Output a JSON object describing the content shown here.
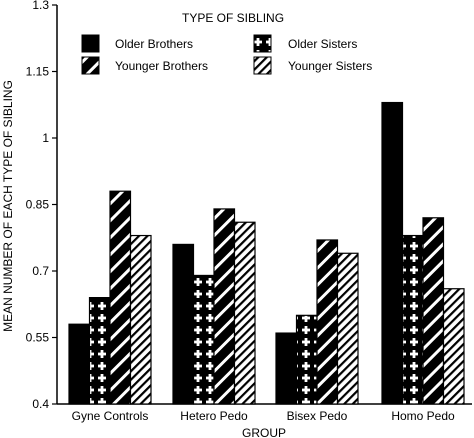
{
  "chart_data": {
    "type": "bar",
    "xlabel": "GROUP",
    "ylabel": "MEAN NUMBER OF EACH TYPE OF SIBLING",
    "ylim": [
      0.4,
      1.3
    ],
    "yticks": [
      "0.4",
      "0.55",
      "0.7",
      "0.85",
      "1",
      "1.15",
      "1.3"
    ],
    "ytick_values": [
      0.4,
      0.55,
      0.7,
      0.85,
      1.0,
      1.15,
      1.3
    ],
    "categories": [
      "Gyne Controls",
      "Hetero Pedo",
      "Bisex Pedo",
      "Homo Pedo"
    ],
    "legend": {
      "title": "TYPE OF SIBLING",
      "placement": "top"
    },
    "series": [
      {
        "name": "Older Brothers",
        "pattern": "solid",
        "values": [
          0.58,
          0.76,
          0.56,
          1.08
        ]
      },
      {
        "name": "Older Sisters",
        "pattern": "cross",
        "values": [
          0.64,
          0.69,
          0.6,
          0.78
        ]
      },
      {
        "name": "Younger Brothers",
        "pattern": "wide-diagonal",
        "values": [
          0.88,
          0.84,
          0.77,
          0.82
        ]
      },
      {
        "name": "Younger Sisters",
        "pattern": "fine-diagonal",
        "values": [
          0.78,
          0.81,
          0.74,
          0.66
        ]
      }
    ]
  }
}
